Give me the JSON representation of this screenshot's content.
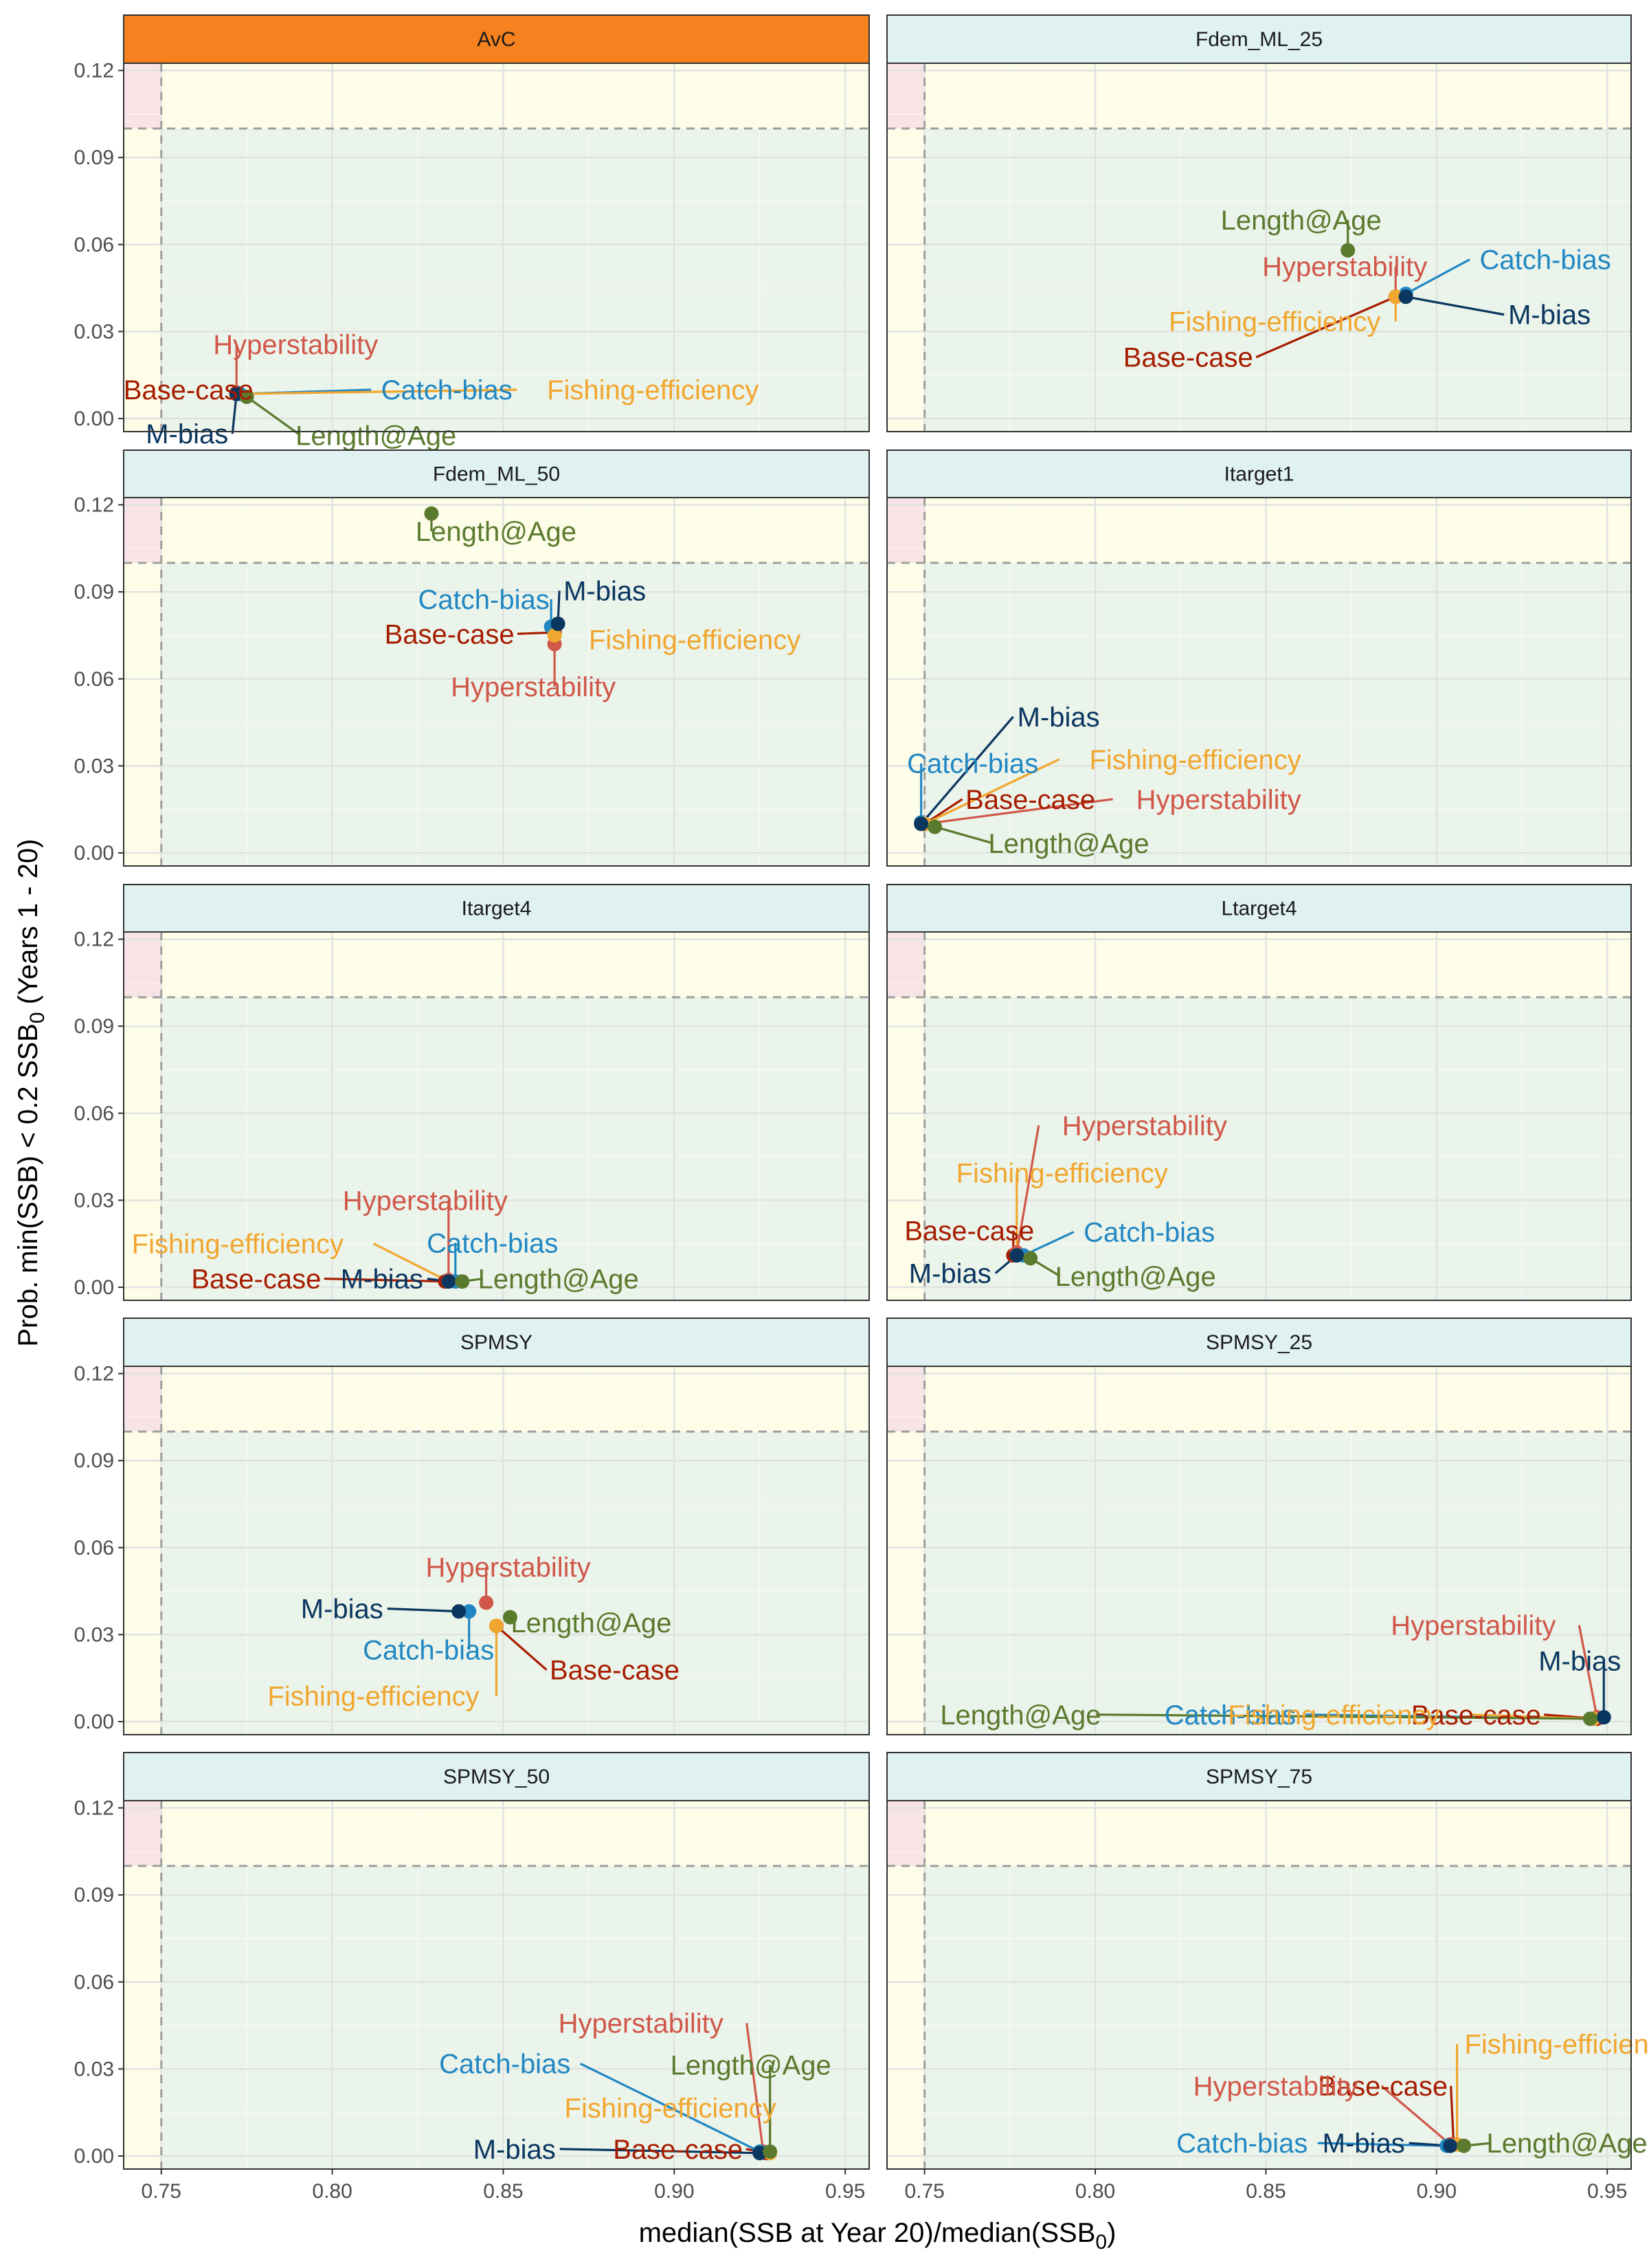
{
  "chart_data": {
    "type": "scatter",
    "layout": "facet grid, 2 columns x 5 rows, shared axes",
    "xlabel_main": "median(SSB at Year 20)/median(SSB",
    "xlabel_sub": "0",
    "xlabel_end": ")",
    "ylabel_main": "Prob. min(SSB) < 0.2 SSB",
    "ylabel_sub": "0",
    "ylabel_end": " (Years 1 - 20)",
    "xlim": [
      0.739,
      0.957
    ],
    "ylim": [
      -0.0045,
      0.1225
    ],
    "x_ticks": [
      0.75,
      0.8,
      0.85,
      0.9,
      0.95
    ],
    "x_tick_labels": [
      "0.75",
      "0.80",
      "0.85",
      "0.90",
      "0.95"
    ],
    "y_ticks": [
      0.0,
      0.03,
      0.06,
      0.09,
      0.12
    ],
    "y_tick_labels": [
      "0.00",
      "0.03",
      "0.06",
      "0.09",
      "0.12"
    ],
    "grid": true,
    "reference_lines": {
      "x": 0.75,
      "y": 0.1,
      "style": "dashed"
    },
    "background_zones": {
      "acceptable": "#ebf4ea",
      "marginal": "#fdfde8",
      "unacceptable": "#f8e4e6"
    },
    "colors": {
      "Base-case": "#a61c00",
      "Hyperstability": "#d0574a",
      "Catch-bias": "#2187c3",
      "Fishing-efficiency": "#f1a62f",
      "M-bias": "#0a3660",
      "Length@Age": "#5a7a2e"
    },
    "series_order": [
      "Base-case",
      "Hyperstability",
      "Catch-bias",
      "Fishing-efficiency",
      "M-bias",
      "Length@Age"
    ],
    "panels": [
      {
        "title": "AvC",
        "highlight": true,
        "strip_color": "#f5821f",
        "points": [
          {
            "series": "M-bias",
            "x": 0.772,
            "y": 0.0085
          },
          {
            "series": "Base-case",
            "x": 0.772,
            "y": 0.0085
          },
          {
            "series": "Length@Age",
            "x": 0.775,
            "y": 0.0075
          },
          {
            "series": "Catch-bias",
            "x": 0.773,
            "y": 0.0085
          },
          {
            "series": "Hyperstability",
            "x": 0.772,
            "y": 0.009
          },
          {
            "series": "Fishing-efficiency",
            "x": 0.772,
            "y": 0.0085
          }
        ]
      },
      {
        "title": "Fdem_ML_25",
        "highlight": false,
        "strip_color": "#e0f1f1",
        "points": [
          {
            "series": "Length@Age",
            "x": 0.874,
            "y": 0.058
          },
          {
            "series": "Catch-bias",
            "x": 0.891,
            "y": 0.043
          },
          {
            "series": "M-bias",
            "x": 0.891,
            "y": 0.042
          },
          {
            "series": "Hyperstability",
            "x": 0.888,
            "y": 0.042
          },
          {
            "series": "Base-case",
            "x": 0.888,
            "y": 0.042
          },
          {
            "series": "Fishing-efficiency",
            "x": 0.888,
            "y": 0.042
          }
        ]
      },
      {
        "title": "Fdem_ML_50",
        "highlight": false,
        "strip_color": "#e0f1f1",
        "points": [
          {
            "series": "Length@Age",
            "x": 0.829,
            "y": 0.117
          },
          {
            "series": "Catch-bias",
            "x": 0.864,
            "y": 0.078
          },
          {
            "series": "M-bias",
            "x": 0.866,
            "y": 0.079
          },
          {
            "series": "Base-case",
            "x": 0.865,
            "y": 0.076
          },
          {
            "series": "Hyperstability",
            "x": 0.865,
            "y": 0.072
          },
          {
            "series": "Fishing-efficiency",
            "x": 0.865,
            "y": 0.075
          }
        ]
      },
      {
        "title": "Itarget1",
        "highlight": false,
        "strip_color": "#e0f1f1",
        "points": [
          {
            "series": "Catch-bias",
            "x": 0.749,
            "y": 0.0105
          },
          {
            "series": "M-bias",
            "x": 0.749,
            "y": 0.01
          },
          {
            "series": "Base-case",
            "x": 0.75,
            "y": 0.01
          },
          {
            "series": "Hyperstability",
            "x": 0.75,
            "y": 0.01
          },
          {
            "series": "Length@Age",
            "x": 0.753,
            "y": 0.009
          },
          {
            "series": "Fishing-efficiency",
            "x": 0.75,
            "y": 0.01
          }
        ]
      },
      {
        "title": "Itarget4",
        "highlight": false,
        "strip_color": "#e0f1f1",
        "points": [
          {
            "series": "Base-case",
            "x": 0.833,
            "y": 0.002
          },
          {
            "series": "M-bias",
            "x": 0.834,
            "y": 0.002
          },
          {
            "series": "Hyperstability",
            "x": 0.834,
            "y": 0.0025
          },
          {
            "series": "Fishing-efficiency",
            "x": 0.834,
            "y": 0.002
          },
          {
            "series": "Catch-bias",
            "x": 0.836,
            "y": 0.002
          },
          {
            "series": "Length@Age",
            "x": 0.838,
            "y": 0.002
          }
        ]
      },
      {
        "title": "Ltarget4",
        "highlight": false,
        "strip_color": "#e0f1f1",
        "points": [
          {
            "series": "Hyperstability",
            "x": 0.777,
            "y": 0.012
          },
          {
            "series": "Fishing-efficiency",
            "x": 0.777,
            "y": 0.011
          },
          {
            "series": "Base-case",
            "x": 0.776,
            "y": 0.011
          },
          {
            "series": "Catch-bias",
            "x": 0.779,
            "y": 0.011
          },
          {
            "series": "M-bias",
            "x": 0.777,
            "y": 0.011
          },
          {
            "series": "Length@Age",
            "x": 0.781,
            "y": 0.01
          }
        ]
      },
      {
        "title": "SPMSY",
        "highlight": false,
        "strip_color": "#e0f1f1",
        "points": [
          {
            "series": "Hyperstability",
            "x": 0.845,
            "y": 0.041
          },
          {
            "series": "M-bias",
            "x": 0.837,
            "y": 0.038
          },
          {
            "series": "Catch-bias",
            "x": 0.84,
            "y": 0.038
          },
          {
            "series": "Length@Age",
            "x": 0.852,
            "y": 0.036
          },
          {
            "series": "Base-case",
            "x": 0.848,
            "y": 0.033
          },
          {
            "series": "Fishing-efficiency",
            "x": 0.848,
            "y": 0.033
          }
        ]
      },
      {
        "title": "SPMSY_25",
        "highlight": false,
        "strip_color": "#e0f1f1",
        "points": [
          {
            "series": "Hyperstability",
            "x": 0.947,
            "y": 0.0015
          },
          {
            "series": "M-bias",
            "x": 0.949,
            "y": 0.0015
          },
          {
            "series": "Length@Age",
            "x": 0.945,
            "y": 0.001
          },
          {
            "series": "Catch-bias",
            "x": 0.946,
            "y": 0.001
          },
          {
            "series": "Fishing-efficiency",
            "x": 0.946,
            "y": 0.001
          },
          {
            "series": "Base-case",
            "x": 0.947,
            "y": 0.001
          }
        ]
      },
      {
        "title": "SPMSY_50",
        "highlight": false,
        "strip_color": "#e0f1f1",
        "points": [
          {
            "series": "Hyperstability",
            "x": 0.926,
            "y": 0.0015
          },
          {
            "series": "Catch-bias",
            "x": 0.925,
            "y": 0.0015
          },
          {
            "series": "Length@Age",
            "x": 0.928,
            "y": 0.0015
          },
          {
            "series": "Fishing-efficiency",
            "x": 0.928,
            "y": 0.001
          },
          {
            "series": "M-bias",
            "x": 0.925,
            "y": 0.001
          },
          {
            "series": "Base-case",
            "x": 0.927,
            "y": 0.001
          }
        ]
      },
      {
        "title": "SPMSY_75",
        "highlight": false,
        "strip_color": "#e0f1f1",
        "points": [
          {
            "series": "Fishing-efficiency",
            "x": 0.906,
            "y": 0.004
          },
          {
            "series": "Hyperstability",
            "x": 0.904,
            "y": 0.004
          },
          {
            "series": "Base-case",
            "x": 0.905,
            "y": 0.004
          },
          {
            "series": "Catch-bias",
            "x": 0.903,
            "y": 0.0035
          },
          {
            "series": "M-bias",
            "x": 0.904,
            "y": 0.0035
          },
          {
            "series": "Length@Age",
            "x": 0.908,
            "y": 0.0035
          }
        ]
      }
    ]
  }
}
